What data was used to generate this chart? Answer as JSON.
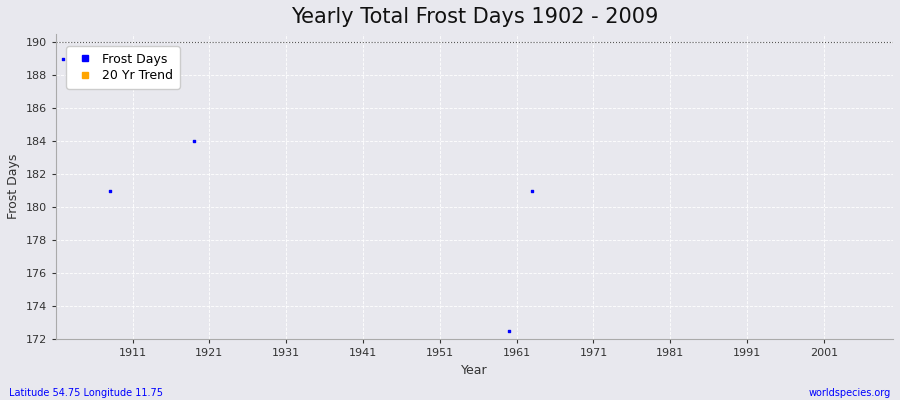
{
  "title": "Yearly Total Frost Days 1902 - 2009",
  "xlabel": "Year",
  "ylabel": "Frost Days",
  "footnote_left": "Latitude 54.75 Longitude 11.75",
  "footnote_right": "worldspecies.org",
  "xlim": [
    1901,
    2010
  ],
  "ylim": [
    172,
    190.5
  ],
  "yticks": [
    172,
    174,
    176,
    178,
    180,
    182,
    184,
    186,
    188,
    190
  ],
  "xticks": [
    1911,
    1921,
    1931,
    1941,
    1951,
    1961,
    1971,
    1981,
    1991,
    2001
  ],
  "xtick_labels": [
    "1911",
    "1921",
    "1931",
    "1941",
    "1951",
    "1961",
    "1971",
    "1981",
    "1991",
    "2001"
  ],
  "frost_days_x": [
    1902,
    1908,
    1919,
    1960,
    1963
  ],
  "frost_days_y": [
    189.0,
    181.0,
    184.0,
    172.5,
    181.0
  ],
  "frost_color": "#0000ff",
  "trend_color": "#ffa500",
  "bg_color": "#e8e8ee",
  "plot_bg": "#e8e8ee",
  "grid_color": "#ffffff",
  "top_dashed_color": "#555555",
  "legend_frost_label": "Frost Days",
  "legend_trend_label": "20 Yr Trend",
  "title_fontsize": 15,
  "axis_label_fontsize": 9,
  "tick_fontsize": 8,
  "footnote_fontsize": 7
}
